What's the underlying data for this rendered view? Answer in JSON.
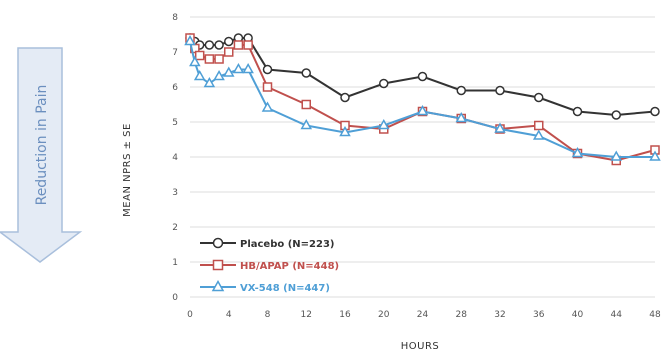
{
  "side_label": "Reduction in Pain",
  "chart_data": {
    "type": "line",
    "xlabel": "HOURS",
    "ylabel": "MEAN NPRS ± SE",
    "ylim": [
      0,
      8
    ],
    "y_ticks": [
      0,
      1,
      2,
      3,
      4,
      5,
      6,
      7,
      8
    ],
    "x_ticks": [
      0,
      4,
      8,
      12,
      16,
      20,
      24,
      28,
      32,
      36,
      40,
      44,
      48
    ],
    "x_tick_labels": [
      "0",
      "4",
      "8",
      "12",
      "16",
      "20",
      "24",
      "28",
      "32",
      "36",
      "40",
      "44",
      "48"
    ],
    "grid": "horizontal",
    "legend_position": "bottom-left",
    "series": [
      {
        "name": "Placebo (N=223)",
        "color": "#333333",
        "marker": "circle",
        "x": [
          0,
          0.5,
          1,
          2,
          3,
          4,
          5,
          6,
          8,
          12,
          16,
          20,
          24,
          28,
          32,
          36,
          40,
          44,
          48
        ],
        "values": [
          7.4,
          7.3,
          7.2,
          7.2,
          7.2,
          7.3,
          7.4,
          7.4,
          6.5,
          6.4,
          5.7,
          6.1,
          6.3,
          5.9,
          5.9,
          5.7,
          5.3,
          5.2,
          5.3
        ]
      },
      {
        "name": "HB/APAP (N=448)",
        "color": "#c0504d",
        "marker": "square",
        "x": [
          0,
          0.5,
          1,
          2,
          3,
          4,
          5,
          6,
          8,
          12,
          16,
          20,
          24,
          28,
          32,
          36,
          40,
          44,
          48
        ],
        "values": [
          7.4,
          7.1,
          6.9,
          6.8,
          6.8,
          7.0,
          7.2,
          7.2,
          6.0,
          5.5,
          4.9,
          4.8,
          5.3,
          5.1,
          4.8,
          4.9,
          4.1,
          3.9,
          4.2
        ]
      },
      {
        "name": "VX-548 (N=447)",
        "color": "#4f9fd6",
        "marker": "triangle",
        "x": [
          0,
          0.5,
          1,
          2,
          3,
          4,
          5,
          6,
          8,
          12,
          16,
          20,
          24,
          28,
          32,
          36,
          40,
          44,
          48
        ],
        "values": [
          7.3,
          6.7,
          6.3,
          6.1,
          6.3,
          6.4,
          6.5,
          6.5,
          5.4,
          4.9,
          4.7,
          4.9,
          5.3,
          5.1,
          4.8,
          4.6,
          4.1,
          4.0,
          4.0
        ]
      }
    ]
  }
}
